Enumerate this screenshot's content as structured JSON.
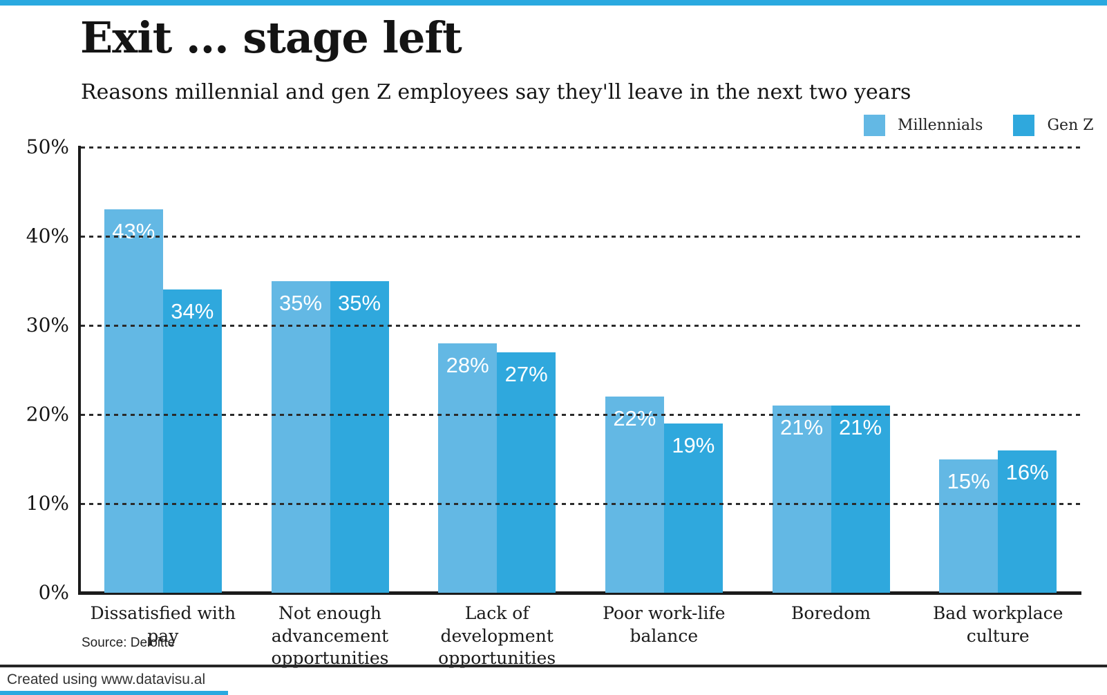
{
  "page": {
    "title": "Exit ... stage left",
    "subtitle": "Reasons millennial and gen Z employees say they'll leave in the next two years",
    "source": "Source: Deloitte",
    "footer": "Created using www.datavisu.al"
  },
  "colors": {
    "millennials": "#63b8e4",
    "gen_z": "#2fa8dd",
    "accent_bar": "#2aa9e0",
    "axis": "#1b1b1b",
    "gridline": "#2b2b2b",
    "value_label": "#ffffff"
  },
  "legend": [
    {
      "label": "Millennials",
      "color": "#63b8e4"
    },
    {
      "label": "Gen Z",
      "color": "#2fa8dd"
    }
  ],
  "chart_data": {
    "type": "bar",
    "title": "Exit ... stage left",
    "subtitle": "Reasons millennial and gen Z employees say they'll leave in the next two years",
    "categories": [
      "Dissatisfied with\npay",
      "Not enough\nadvancement\nopportunities",
      "Lack of\ndevelopment\nopportunities",
      "Poor work-life\nbalance",
      "Boredom",
      "Bad workplace\nculture"
    ],
    "series": [
      {
        "name": "Millennials",
        "color": "#63b8e4",
        "values": [
          43,
          35,
          28,
          22,
          21,
          15
        ]
      },
      {
        "name": "Gen Z",
        "color": "#2fa8dd",
        "values": [
          34,
          35,
          27,
          19,
          21,
          16
        ]
      }
    ],
    "value_suffix": "%",
    "xlabel": "",
    "ylabel": "",
    "ylim": [
      0,
      50
    ],
    "ytick_values": [
      50,
      40,
      30,
      20,
      10,
      0
    ],
    "ytick_labels": [
      "50%",
      "40%",
      "30%",
      "20%",
      "10%",
      "0%"
    ],
    "gridline_values": [
      50,
      40,
      30,
      20,
      10
    ],
    "grid": "dotted-horizontal",
    "legend_position": "top-right"
  }
}
